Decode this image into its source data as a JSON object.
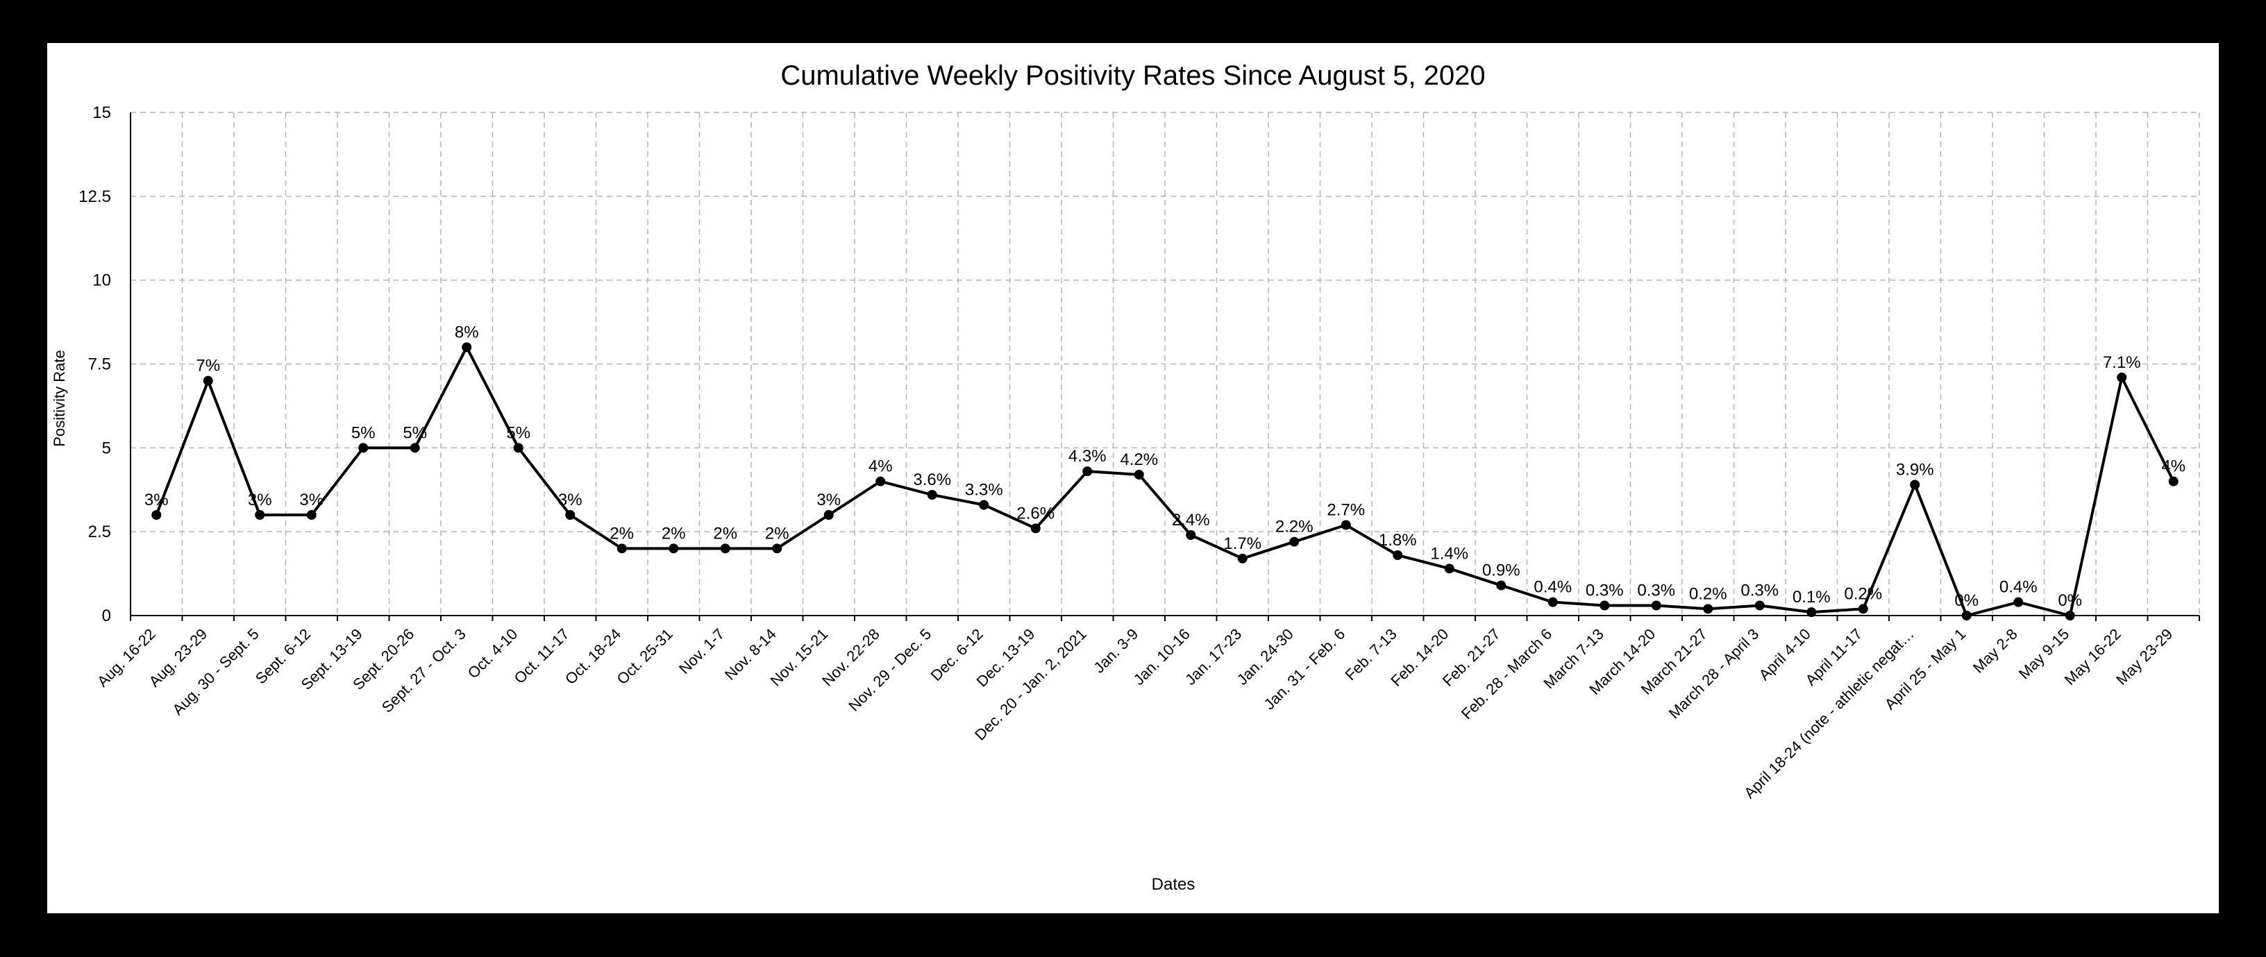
{
  "chart_data": {
    "type": "line",
    "title": "Cumulative Weekly Positivity Rates Since August 5, 2020",
    "xlabel": "Dates",
    "ylabel": "Positivity Rate",
    "ylim": [
      0,
      15
    ],
    "yticks": [
      "0",
      "2.5",
      "5",
      "7.5",
      "10",
      "12.5",
      "15"
    ],
    "grid": true,
    "categories": [
      "Aug. 16-22",
      "Aug. 23-29",
      "Aug. 30 - Sept. 5",
      "Sept. 6-12",
      "Sept. 13-19",
      "Sept. 20-26",
      "Sept. 27 - Oct. 3",
      "Oct. 4-10",
      "Oct. 11-17",
      "Oct. 18-24",
      "Oct. 25-31",
      "Nov. 1-7",
      "Nov. 8-14",
      "Nov. 15-21",
      "Nov. 22-28",
      "Nov. 29 - Dec. 5",
      "Dec. 6-12",
      "Dec. 13-19",
      "Dec. 20 - Jan. 2, 2021",
      "Jan. 3-9",
      "Jan. 10-16",
      "Jan. 17-23",
      "Jan. 24-30",
      "Jan. 31 - Feb. 6",
      "Feb. 7-13",
      "Feb. 14-20",
      "Feb. 21-27",
      "Feb. 28 - March 6",
      "March 7-13",
      "March 14-20",
      "March 21-27",
      "March 28 - April 3",
      "April 4-10",
      "April 11-17",
      "April 18-24 (note - athletic negat…",
      "April 25 - May 1",
      "May 2-8",
      "May 9-15",
      "May 16-22",
      "May 23-29"
    ],
    "series": [
      {
        "values": [
          3,
          7,
          3,
          3,
          5,
          5,
          8,
          5,
          3,
          2,
          2,
          2,
          2,
          3,
          4,
          3.6,
          3.3,
          2.6,
          4.3,
          4.2,
          2.4,
          1.7,
          2.2,
          2.7,
          1.8,
          1.4,
          0.9,
          0.4,
          0.3,
          0.3,
          0.2,
          0.3,
          0.1,
          0.2,
          3.9,
          0,
          0.4,
          0,
          7.1,
          4
        ],
        "labels": [
          "3%",
          "7%",
          "3%",
          "3%",
          "5%",
          "5%",
          "8%",
          "5%",
          "3%",
          "2%",
          "2%",
          "2%",
          "2%",
          "3%",
          "4%",
          "3.6%",
          "3.3%",
          "2.6%",
          "4.3%",
          "4.2%",
          "2.4%",
          "1.7%",
          "2.2%",
          "2.7%",
          "1.8%",
          "1.4%",
          "0.9%",
          "0.4%",
          "0.3%",
          "0.3%",
          "0.2%",
          "0.3%",
          "0.1%",
          "0.2%",
          "3.9%",
          "0%",
          "0.4%",
          "0%",
          "7.1%",
          "4%"
        ],
        "color": "#000000"
      }
    ]
  }
}
